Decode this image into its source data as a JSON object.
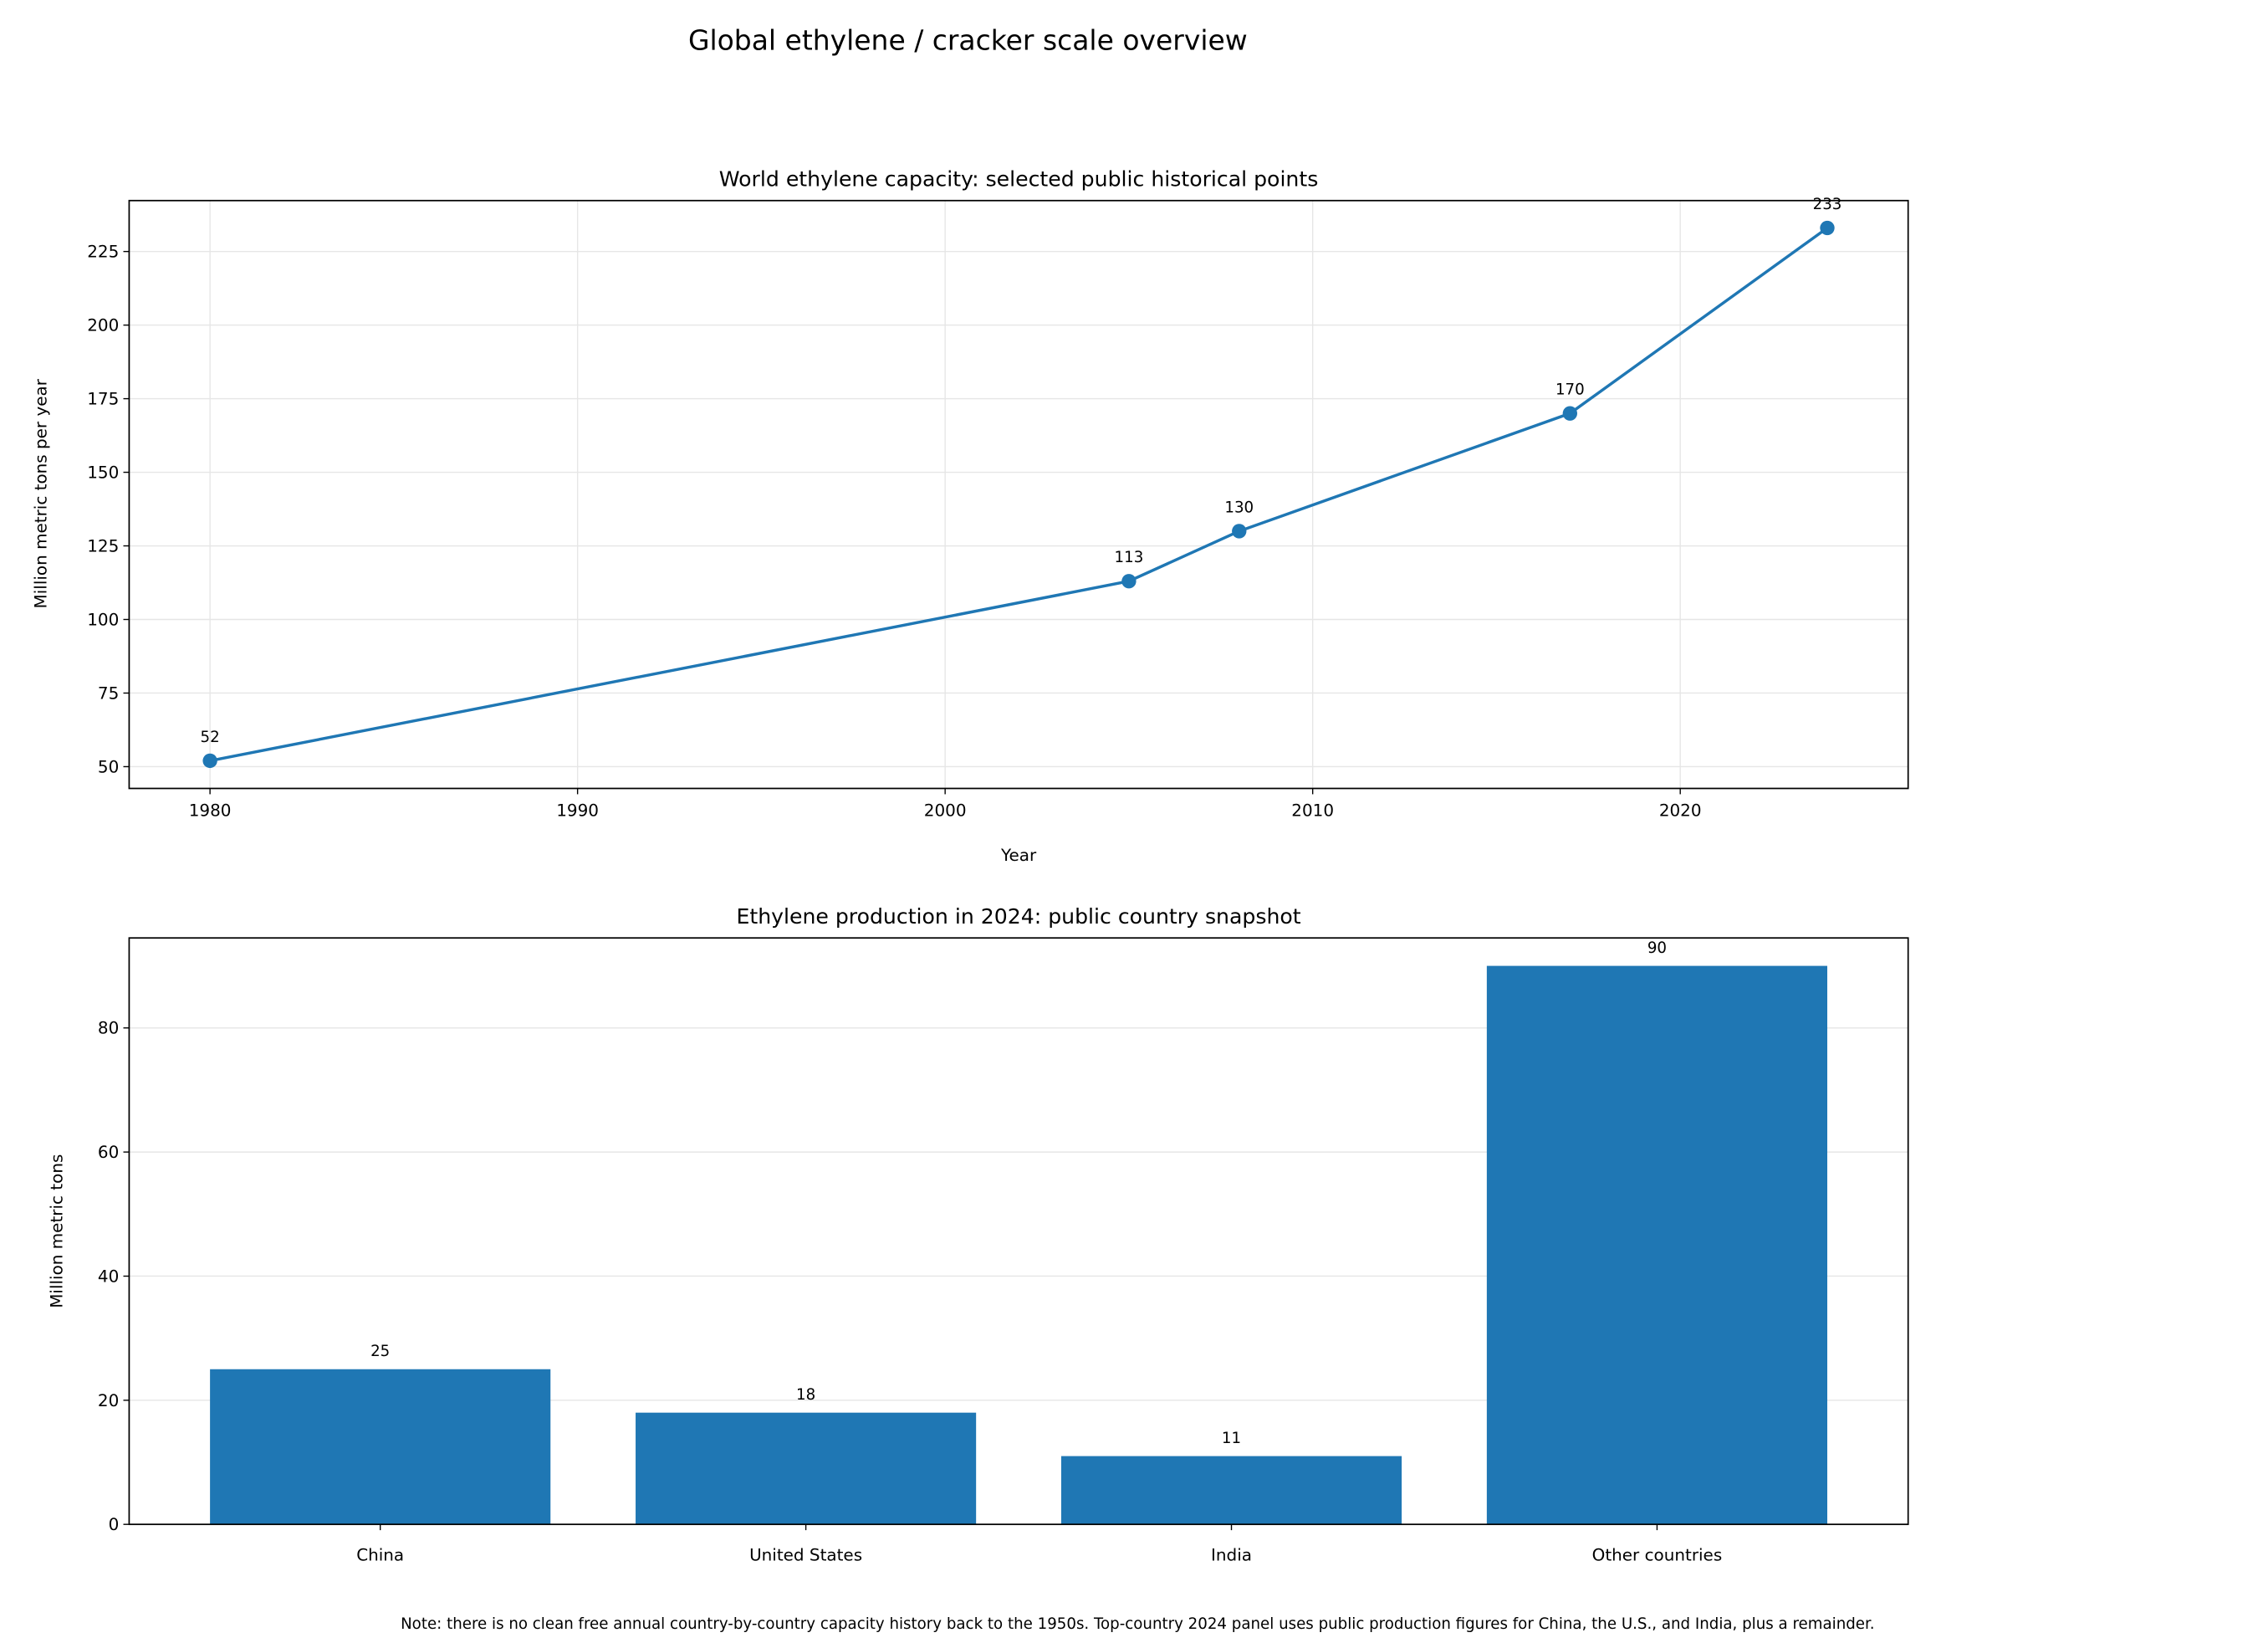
{
  "suptitle": "Global ethylene / cracker scale overview",
  "note": "Note: there is no clean free annual country-by-country capacity history back to the 1950s. Top-country 2024 panel uses public production figures for China, the U.S., and India, plus a remainder.",
  "colors": {
    "series": "#1f77b4"
  },
  "chart_data": [
    {
      "type": "line",
      "title": "World ethylene capacity: selected public historical points",
      "xlabel": "Year",
      "ylabel": "Million metric tons per year",
      "x": [
        1980,
        2005,
        2008,
        2017,
        2024
      ],
      "y": [
        52,
        113,
        130,
        170,
        233
      ],
      "data_labels": [
        "52",
        "113",
        "130",
        "170",
        "233"
      ],
      "xlim": [
        1977.8,
        2026.2
      ],
      "ylim": [
        42.6,
        242.3
      ],
      "xticks": [
        1980,
        1990,
        2000,
        2010,
        2020
      ],
      "xtick_labels": [
        "1980",
        "1990",
        "2000",
        "2010",
        "2020"
      ],
      "yticks": [
        50,
        75,
        100,
        125,
        150,
        175,
        200,
        225
      ],
      "ytick_labels": [
        "50",
        "75",
        "100",
        "125",
        "150",
        "175",
        "200",
        "225"
      ],
      "grid": true,
      "markers": true
    },
    {
      "type": "bar",
      "title": "Ethylene production in 2024: public country snapshot",
      "xlabel": "",
      "ylabel": "Million metric tons",
      "categories": [
        "China",
        "United States",
        "India",
        "Other countries"
      ],
      "values": [
        25,
        18,
        11,
        90
      ],
      "data_labels": [
        "25",
        "18",
        "11",
        "90"
      ],
      "ylim": [
        0,
        94.5
      ],
      "yticks": [
        0,
        20,
        40,
        60,
        80
      ],
      "ytick_labels": [
        "0",
        "20",
        "40",
        "60",
        "80"
      ],
      "grid": true,
      "grid_axis": "y"
    }
  ]
}
